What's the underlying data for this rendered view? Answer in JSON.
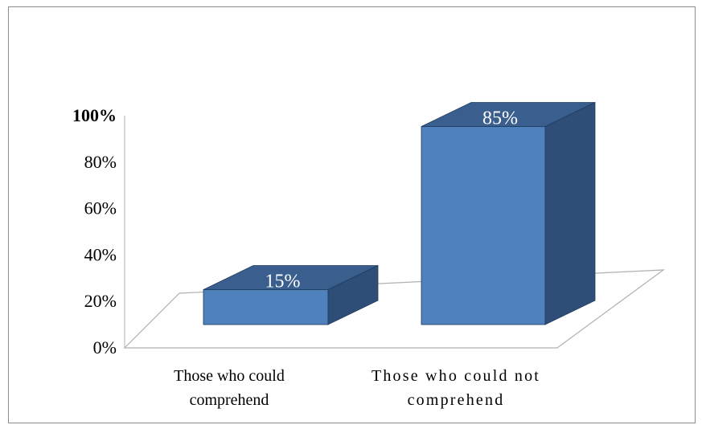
{
  "chart_data": {
    "type": "bar",
    "style": "3d-column",
    "categories": [
      [
        "Those who could",
        "comprehend"
      ],
      [
        "Those who could not",
        "comprehend"
      ]
    ],
    "values": [
      15,
      85
    ],
    "data_labels": [
      "15%",
      "85%"
    ],
    "y_ticks": [
      "0%",
      "20%",
      "40%",
      "60%",
      "80%",
      "100%"
    ],
    "ylim": [
      0,
      100
    ],
    "title": "",
    "xlabel": "",
    "ylabel": "",
    "grid": false,
    "legend": "none",
    "colors": {
      "bar_front": "#4f81bd",
      "bar_top": "#3a5f8f",
      "bar_side": "#2f4e77",
      "bar_edge": "#1f3b60",
      "floor_line": "#b0b0b0",
      "axis_line": "#b0b0b0"
    }
  }
}
